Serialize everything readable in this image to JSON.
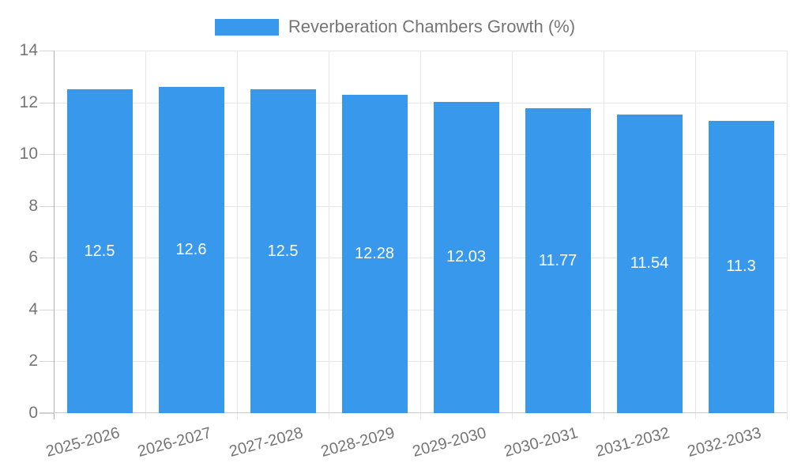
{
  "chart_data": {
    "type": "bar",
    "title": "",
    "legend": {
      "label": "Reverberation Chambers Growth (%)",
      "position": "top"
    },
    "categories": [
      "2025-2026",
      "2026-2027",
      "2027-2028",
      "2028-2029",
      "2029-2030",
      "2030-2031",
      "2031-2032",
      "2032-2033"
    ],
    "values": [
      12.5,
      12.6,
      12.5,
      12.28,
      12.03,
      11.77,
      11.54,
      11.3
    ],
    "value_labels": [
      "12.5",
      "12.6",
      "12.5",
      "12.28",
      "12.03",
      "11.77",
      "11.54",
      "11.3"
    ],
    "xlabel": "",
    "ylabel": "",
    "ylim": [
      0,
      14
    ],
    "yticks": [
      0,
      2,
      4,
      6,
      8,
      10,
      12,
      14
    ],
    "grid": true,
    "colors": {
      "bar": "#3898ec",
      "grid": "#e6e6e6",
      "y_axis_line": "#b3b3b3",
      "baseline": "#c9c9c9",
      "tick": "#d6d6d6",
      "axis_text": "#757575",
      "value_label": "#ffffff"
    }
  }
}
